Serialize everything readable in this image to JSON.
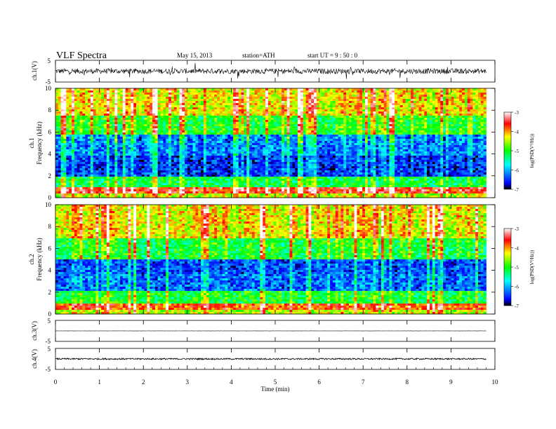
{
  "header": {
    "title": "VLF Spectra",
    "date": "May 15, 2013",
    "station": "station=ATH",
    "start": "start UT =  9 : 50 : 0"
  },
  "chart_data": [
    {
      "type": "line",
      "panel": "ch1-waveform",
      "ylabel": "ch.1(V)",
      "ylim": [
        -5,
        5
      ],
      "yticks": [
        "5",
        "-5"
      ],
      "xlim": [
        0,
        10
      ],
      "data_end_min": 9.8,
      "baseline_v": 0.0,
      "noise_amplitude_v": 1.2,
      "spike_amplitude_v": 3.0
    },
    {
      "type": "heatmap",
      "panel": "ch1-spectrogram",
      "ylabel": "ch.1\nFrequency (kHz)",
      "ylim": [
        0,
        10
      ],
      "yticks": [
        "0",
        "2",
        "4",
        "6",
        "8",
        "10"
      ],
      "xlim": [
        0,
        10
      ],
      "data_end_min": 9.8,
      "value_range": [
        -7,
        -3
      ],
      "bands_khz": [
        {
          "from": 0.0,
          "to": 0.3,
          "logpsd": -4.5
        },
        {
          "from": 0.3,
          "to": 0.9,
          "logpsd": -3.6
        },
        {
          "from": 0.9,
          "to": 2.0,
          "logpsd": -5.2
        },
        {
          "from": 2.0,
          "to": 3.8,
          "logpsd": -6.5
        },
        {
          "from": 3.8,
          "to": 5.8,
          "logpsd": -6.2
        },
        {
          "from": 5.8,
          "to": 7.5,
          "logpsd": -5.0
        },
        {
          "from": 7.5,
          "to": 10.0,
          "logpsd": -4.3
        }
      ]
    },
    {
      "type": "heatmap",
      "panel": "ch2-spectrogram",
      "ylabel": "ch.2\nFrequency (kHz)",
      "ylim": [
        0,
        10
      ],
      "yticks": [
        "0",
        "2",
        "4",
        "6",
        "8",
        "10"
      ],
      "xlim": [
        0,
        10
      ],
      "data_end_min": 9.8,
      "value_range": [
        -7,
        -3
      ],
      "bands_khz": [
        {
          "from": 0.0,
          "to": 0.3,
          "logpsd": -4.5
        },
        {
          "from": 0.3,
          "to": 1.0,
          "logpsd": -3.8
        },
        {
          "from": 1.0,
          "to": 2.2,
          "logpsd": -5.1
        },
        {
          "from": 2.2,
          "to": 3.6,
          "logpsd": -6.3
        },
        {
          "from": 3.6,
          "to": 5.0,
          "logpsd": -6.4
        },
        {
          "from": 5.0,
          "to": 7.0,
          "logpsd": -5.1
        },
        {
          "from": 7.0,
          "to": 10.0,
          "logpsd": -4.3
        }
      ]
    },
    {
      "type": "line",
      "panel": "ch3-waveform",
      "ylabel": "ch.3(V)",
      "ylim": [
        -5,
        5
      ],
      "yticks": [
        "5",
        "-5"
      ],
      "xlim": [
        0,
        10
      ],
      "data_end_min": 9.8,
      "baseline_v": 0.0,
      "noise_amplitude_v": 0.05
    },
    {
      "type": "line",
      "panel": "ch4-waveform",
      "ylabel": "ch.4(V)",
      "ylim": [
        -5,
        5
      ],
      "yticks": [
        "5",
        "-5"
      ],
      "xlim": [
        0,
        10
      ],
      "data_end_min": 9.8,
      "baseline_v": 0.0,
      "noise_amplitude_v": 0.35,
      "xlabel": "Time (min)",
      "xticks": [
        "0",
        "1",
        "2",
        "3",
        "4",
        "5",
        "6",
        "7",
        "8",
        "9",
        "10"
      ]
    }
  ],
  "colorbars": [
    {
      "label": "log(PSD(V²/Hz))",
      "ticks": [
        "-3",
        "-4",
        "-5",
        "-6",
        "-7"
      ],
      "range": [
        -7,
        -3
      ],
      "colors": [
        "#000000",
        "#0000ff",
        "#00ffff",
        "#00ff00",
        "#ffff00",
        "#ff0000",
        "#ffffff"
      ]
    },
    {
      "label": "log(PSD(V²/Hz))",
      "ticks": [
        "-3",
        "-4",
        "-5",
        "-6",
        "-7"
      ],
      "range": [
        -7,
        -3
      ],
      "colors": [
        "#000000",
        "#0000ff",
        "#00ffff",
        "#00ff00",
        "#ffff00",
        "#ff0000",
        "#ffffff"
      ]
    }
  ]
}
